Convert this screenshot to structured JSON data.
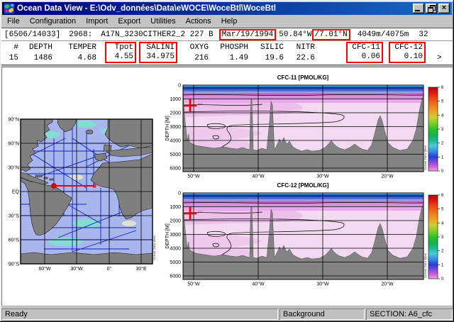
{
  "window": {
    "title": "Ocean Data View - E:\\Odv_données\\Data\\eWOCE\\WoceBtl\\WoceBtl"
  },
  "menu": {
    "items": [
      "File",
      "Configuration",
      "Import",
      "Export",
      "Utilities",
      "Actions",
      "Help"
    ]
  },
  "infobar": {
    "counter": "[6506/14033]",
    "station": "2968:",
    "cruise": "A17N_3230CITHER2_2 227 B",
    "date": "Mar/19/1994",
    "longitude": "50.84°W",
    "latitude": "/7.01°N",
    "depths": "4049m/4075m",
    "trailing": "32"
  },
  "datatable": {
    "columns": [
      {
        "header": "#",
        "value": "15",
        "boxed": false
      },
      {
        "header": "DEPTH",
        "value": "1486",
        "boxed": false
      },
      {
        "header": "TEMPER",
        "value": "4.68",
        "boxed": false
      },
      {
        "header": "Tpot",
        "value": "4.55",
        "boxed": true
      },
      {
        "header": "SALINI",
        "value": "34.975",
        "boxed": true
      },
      {
        "header": "OXYG",
        "value": "216",
        "boxed": false
      },
      {
        "header": "PHOSPH",
        "value": "1.49",
        "boxed": false
      },
      {
        "header": "SILIC",
        "value": "19.6",
        "boxed": false
      },
      {
        "header": "NITR",
        "value": "22.6",
        "boxed": false
      },
      {
        "header": "CFC-11",
        "value": "0.06",
        "boxed": true
      },
      {
        "header": "CFC-12",
        "value": "0.10",
        "boxed": true
      }
    ],
    "more_indicator": ">"
  },
  "map": {
    "lat_labels": [
      "90°N",
      "60°N",
      "30°N",
      "EQ",
      "30°S",
      "60°S",
      "90°S"
    ],
    "lon_labels": [
      "60°W",
      "30°W",
      "0°",
      "30°E"
    ],
    "watermark": "Ocean Data View"
  },
  "plots": [
    {
      "title": "CFC-11 [PMOL/KG]",
      "ylabel": "DEPTH [M]",
      "depth_ticks": [
        "0",
        "1000",
        "2000",
        "3000",
        "4000",
        "5000",
        "6000"
      ],
      "lon_ticks": [
        "50°W",
        "40°W",
        "30°W",
        "20°W"
      ],
      "colorbar_ticks": [
        "0",
        "1",
        "2",
        "3",
        "4",
        "5",
        "6"
      ],
      "contour_label": "4.4",
      "watermark": "Ocean Data View"
    },
    {
      "title": "CFC-12 [PMOL/KG]",
      "ylabel": "DEPTH [M]",
      "depth_ticks": [
        "0",
        "1000",
        "2000",
        "3000",
        "4000",
        "5000",
        "6000"
      ],
      "lon_ticks": [
        "50°W",
        "40°W",
        "30°W",
        "20°W"
      ],
      "colorbar_ticks": [
        "0",
        "1",
        "2",
        "3",
        "4",
        "5",
        "6"
      ],
      "contour_label": "2.2",
      "watermark": "Ocean Data View"
    }
  ],
  "statusbar": {
    "left": "Ready",
    "middle": "Background",
    "right": "SECTION: A6_cfc"
  },
  "colors": {
    "titlebar_start": "#000080",
    "titlebar_end": "#1a6ac6",
    "highlight_red": "#ff0000",
    "section_line_red": "#e80000",
    "plot_background_pink": "#f3d9f2",
    "bathymetry_gray": "#838383",
    "ocean_blue": "#a9b6ee",
    "land_gray": "#7f7f7f",
    "track_blue": "#0018c8"
  }
}
